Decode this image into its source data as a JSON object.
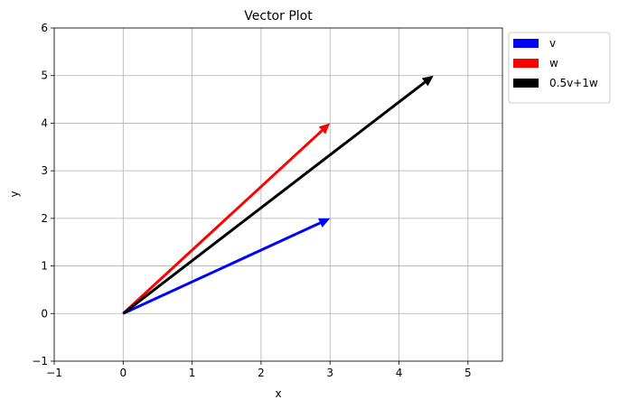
{
  "chart_data": {
    "type": "quiver",
    "title": "Vector Plot",
    "xlabel": "x",
    "ylabel": "y",
    "xlim": [
      -1,
      5.5
    ],
    "ylim": [
      -1,
      6
    ],
    "xticks": [
      -1,
      0,
      1,
      2,
      3,
      4,
      5
    ],
    "yticks": [
      -1,
      0,
      1,
      2,
      3,
      4,
      5,
      6
    ],
    "xtick_labels": [
      "−1",
      "0",
      "1",
      "2",
      "3",
      "4",
      "5"
    ],
    "ytick_labels": [
      "−1",
      "0",
      "1",
      "2",
      "3",
      "4",
      "5",
      "6"
    ],
    "grid": true,
    "legend_placement": "outside-top-right",
    "series": [
      {
        "name": "v",
        "origin": [
          0,
          0
        ],
        "vector": [
          3,
          2
        ],
        "color": "#0000ff"
      },
      {
        "name": "w",
        "origin": [
          0,
          0
        ],
        "vector": [
          3,
          4
        ],
        "color": "#ff0000"
      },
      {
        "name": "0.5v+1w",
        "origin": [
          0,
          0
        ],
        "vector": [
          4.5,
          5
        ],
        "color": "#000000"
      }
    ]
  }
}
